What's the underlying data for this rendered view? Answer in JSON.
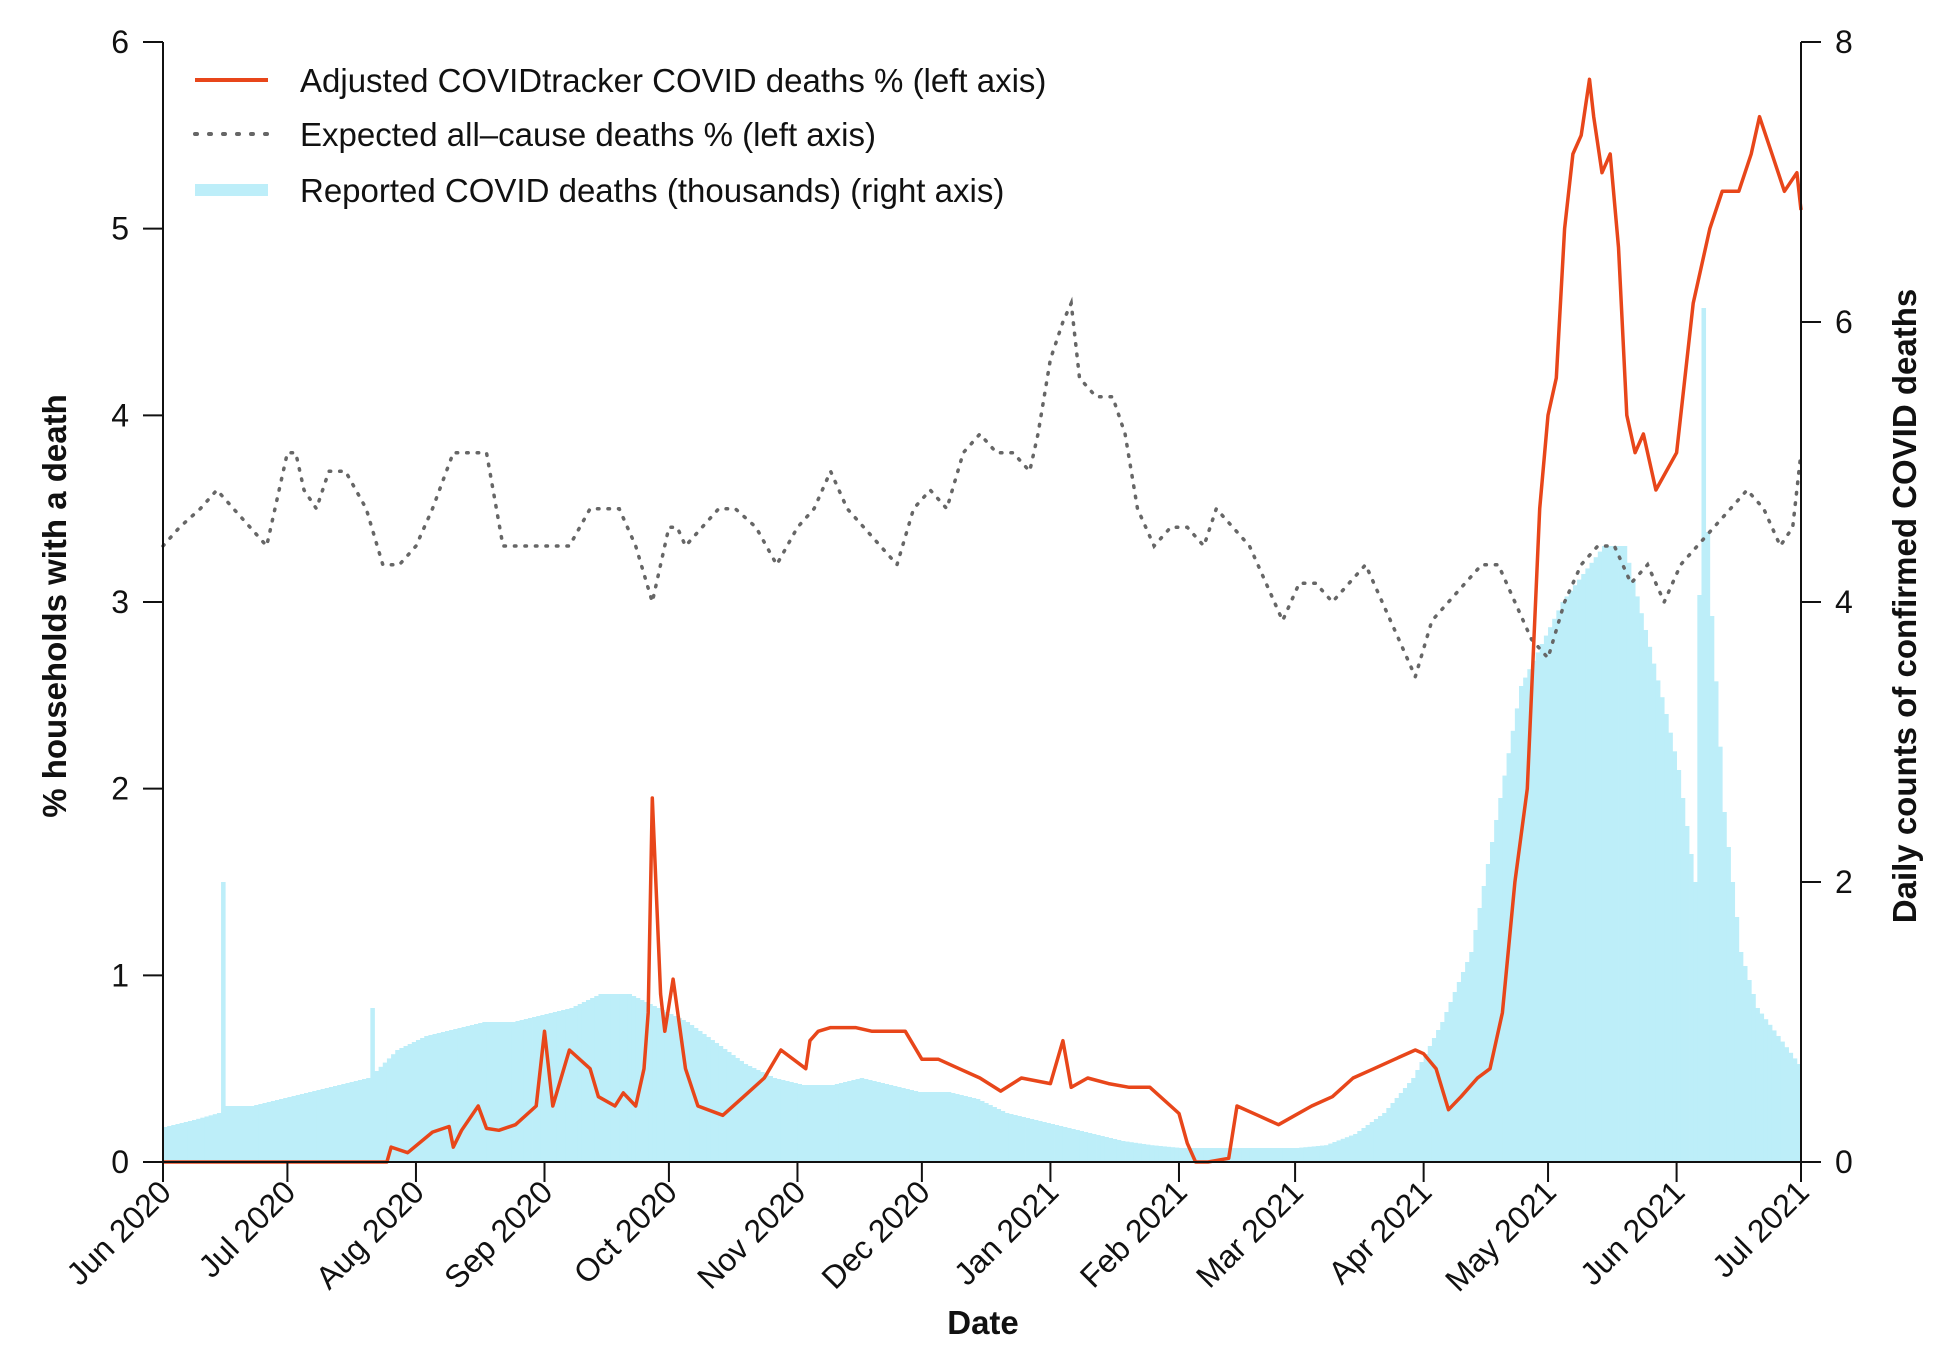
{
  "chart_data": {
    "type": "line",
    "xlabel": "Date",
    "ylabel_left": "% households with a death",
    "ylabel_right": "Daily counts of confirmed COVID deaths",
    "xlim": [
      "2020-06-01",
      "2021-07-01"
    ],
    "ylim_left": [
      0,
      6
    ],
    "ylim_right": [
      0,
      8
    ],
    "grid": false,
    "legend_position": "top-left",
    "x_ticks": [
      "2020-06-01",
      "2020-07-01",
      "2020-08-01",
      "2020-09-01",
      "2020-10-01",
      "2020-11-01",
      "2020-12-01",
      "2021-01-01",
      "2021-02-01",
      "2021-03-01",
      "2021-04-01",
      "2021-05-01",
      "2021-06-01",
      "2021-07-01"
    ],
    "x_tick_labels": [
      "Jun 2020",
      "Jul 2020",
      "Aug 2020",
      "Sep 2020",
      "Oct 2020",
      "Nov 2020",
      "Dec 2020",
      "Jan 2021",
      "Feb 2021",
      "Mar 2021",
      "Apr 2021",
      "May 2021",
      "Jun 2021",
      "Jul 2021"
    ],
    "y_left_ticks": [
      0,
      1,
      2,
      3,
      4,
      5,
      6
    ],
    "y_right_ticks": [
      0,
      2,
      4,
      6,
      8
    ],
    "colors": {
      "adjusted": "#e8461a",
      "expected": "#666666",
      "reported": "#bdeef9"
    },
    "series": [
      {
        "name": "Adjusted COVIDtracker COVID deaths % (left axis)",
        "axis": "left",
        "style": "line",
        "x": [
          "2020-06-01",
          "2020-07-25",
          "2020-07-26",
          "2020-07-30",
          "2020-08-05",
          "2020-08-09",
          "2020-08-10",
          "2020-08-12",
          "2020-08-16",
          "2020-08-18",
          "2020-08-21",
          "2020-08-25",
          "2020-08-30",
          "2020-09-01",
          "2020-09-03",
          "2020-09-05",
          "2020-09-07",
          "2020-09-12",
          "2020-09-14",
          "2020-09-18",
          "2020-09-20",
          "2020-09-23",
          "2020-09-25",
          "2020-09-26",
          "2020-09-27",
          "2020-09-29",
          "2020-09-30",
          "2020-10-02",
          "2020-10-05",
          "2020-10-08",
          "2020-10-14",
          "2020-10-19",
          "2020-10-24",
          "2020-10-28",
          "2020-11-03",
          "2020-11-04",
          "2020-11-06",
          "2020-11-09",
          "2020-11-15",
          "2020-11-19",
          "2020-11-24",
          "2020-11-27",
          "2020-12-01",
          "2020-12-05",
          "2020-12-10",
          "2020-12-15",
          "2020-12-20",
          "2020-12-25",
          "2021-01-01",
          "2021-01-04",
          "2021-01-06",
          "2021-01-10",
          "2021-01-15",
          "2021-01-20",
          "2021-01-25",
          "2021-01-30",
          "2021-02-01",
          "2021-02-03",
          "2021-02-05",
          "2021-02-08",
          "2021-02-13",
          "2021-02-15",
          "2021-02-20",
          "2021-02-25",
          "2021-03-01",
          "2021-03-05",
          "2021-03-10",
          "2021-03-15",
          "2021-03-20",
          "2021-03-25",
          "2021-03-30",
          "2021-04-01",
          "2021-04-04",
          "2021-04-07",
          "2021-04-10",
          "2021-04-14",
          "2021-04-17",
          "2021-04-20",
          "2021-04-23",
          "2021-04-26",
          "2021-04-29",
          "2021-05-01",
          "2021-05-03",
          "2021-05-05",
          "2021-05-07",
          "2021-05-09",
          "2021-05-11",
          "2021-05-12",
          "2021-05-14",
          "2021-05-16",
          "2021-05-18",
          "2021-05-20",
          "2021-05-22",
          "2021-05-24",
          "2021-05-27",
          "2021-06-01",
          "2021-06-03",
          "2021-06-05",
          "2021-06-09",
          "2021-06-12",
          "2021-06-16",
          "2021-06-19",
          "2021-06-21",
          "2021-06-24",
          "2021-06-27",
          "2021-06-30",
          "2021-07-01"
        ],
        "y": [
          0,
          0,
          0.08,
          0.05,
          0.16,
          0.19,
          0.08,
          0.17,
          0.3,
          0.18,
          0.17,
          0.2,
          0.3,
          0.7,
          0.3,
          0.45,
          0.6,
          0.5,
          0.35,
          0.3,
          0.37,
          0.3,
          0.5,
          0.8,
          1.95,
          0.9,
          0.7,
          0.98,
          0.5,
          0.3,
          0.25,
          0.35,
          0.45,
          0.6,
          0.5,
          0.65,
          0.7,
          0.72,
          0.72,
          0.7,
          0.7,
          0.7,
          0.55,
          0.55,
          0.5,
          0.45,
          0.38,
          0.45,
          0.42,
          0.65,
          0.4,
          0.45,
          0.42,
          0.4,
          0.4,
          0.3,
          0.26,
          0.1,
          0,
          0,
          0.02,
          0.3,
          0.25,
          0.2,
          0.25,
          0.3,
          0.35,
          0.45,
          0.5,
          0.55,
          0.6,
          0.58,
          0.5,
          0.28,
          0.35,
          0.45,
          0.5,
          0.8,
          1.5,
          2.0,
          3.5,
          4.0,
          4.2,
          5.0,
          5.4,
          5.5,
          5.8,
          5.6,
          5.3,
          5.4,
          4.9,
          4.0,
          3.8,
          3.9,
          3.6,
          3.8,
          4.2,
          4.6,
          5.0,
          5.2,
          5.2,
          5.4,
          5.6,
          5.4,
          5.2,
          5.3,
          5.1
        ]
      },
      {
        "name": "Expected all–cause deaths % (left axis)",
        "axis": "left",
        "style": "dotted",
        "x": [
          "2020-06-01",
          "2020-06-05",
          "2020-06-10",
          "2020-06-14",
          "2020-06-18",
          "2020-06-22",
          "2020-06-26",
          "2020-07-01",
          "2020-07-03",
          "2020-07-05",
          "2020-07-08",
          "2020-07-11",
          "2020-07-15",
          "2020-07-20",
          "2020-07-24",
          "2020-07-28",
          "2020-08-01",
          "2020-08-05",
          "2020-08-10",
          "2020-08-14",
          "2020-08-18",
          "2020-08-22",
          "2020-08-26",
          "2020-08-30",
          "2020-09-03",
          "2020-09-07",
          "2020-09-12",
          "2020-09-16",
          "2020-09-19",
          "2020-09-23",
          "2020-09-27",
          "2020-10-01",
          "2020-10-03",
          "2020-10-05",
          "2020-10-09",
          "2020-10-13",
          "2020-10-17",
          "2020-10-22",
          "2020-10-27",
          "2020-11-01",
          "2020-11-05",
          "2020-11-09",
          "2020-11-13",
          "2020-11-17",
          "2020-11-21",
          "2020-11-25",
          "2020-11-29",
          "2020-12-03",
          "2020-12-07",
          "2020-12-11",
          "2020-12-15",
          "2020-12-19",
          "2020-12-23",
          "2020-12-27",
          "2020-12-29",
          "2021-01-01",
          "2021-01-04",
          "2021-01-06",
          "2021-01-08",
          "2021-01-12",
          "2021-01-16",
          "2021-01-19",
          "2021-01-22",
          "2021-01-26",
          "2021-01-30",
          "2021-02-03",
          "2021-02-07",
          "2021-02-10",
          "2021-02-14",
          "2021-02-18",
          "2021-02-22",
          "2021-02-26",
          "2021-03-02",
          "2021-03-06",
          "2021-03-10",
          "2021-03-14",
          "2021-03-18",
          "2021-03-22",
          "2021-03-26",
          "2021-03-30",
          "2021-04-03",
          "2021-04-07",
          "2021-04-11",
          "2021-04-15",
          "2021-04-19",
          "2021-04-23",
          "2021-04-27",
          "2021-05-01",
          "2021-05-05",
          "2021-05-09",
          "2021-05-13",
          "2021-05-17",
          "2021-05-21",
          "2021-05-25",
          "2021-05-29",
          "2021-06-02",
          "2021-06-06",
          "2021-06-10",
          "2021-06-14",
          "2021-06-18",
          "2021-06-22",
          "2021-06-26",
          "2021-06-29",
          "2021-07-01"
        ],
        "y": [
          3.3,
          3.4,
          3.5,
          3.6,
          3.5,
          3.4,
          3.3,
          3.8,
          3.8,
          3.6,
          3.5,
          3.7,
          3.7,
          3.5,
          3.2,
          3.2,
          3.3,
          3.5,
          3.8,
          3.8,
          3.8,
          3.3,
          3.3,
          3.3,
          3.3,
          3.3,
          3.5,
          3.5,
          3.5,
          3.3,
          3.0,
          3.4,
          3.4,
          3.3,
          3.4,
          3.5,
          3.5,
          3.4,
          3.2,
          3.4,
          3.5,
          3.7,
          3.5,
          3.4,
          3.3,
          3.2,
          3.5,
          3.6,
          3.5,
          3.8,
          3.9,
          3.8,
          3.8,
          3.7,
          3.9,
          4.3,
          4.5,
          4.6,
          4.2,
          4.1,
          4.1,
          3.9,
          3.5,
          3.3,
          3.4,
          3.4,
          3.3,
          3.5,
          3.4,
          3.3,
          3.1,
          2.9,
          3.1,
          3.1,
          3.0,
          3.1,
          3.2,
          3.0,
          2.8,
          2.6,
          2.9,
          3.0,
          3.1,
          3.2,
          3.2,
          3.0,
          2.8,
          2.7,
          3.0,
          3.2,
          3.3,
          3.3,
          3.1,
          3.2,
          3.0,
          3.2,
          3.3,
          3.4,
          3.5,
          3.6,
          3.5,
          3.3,
          3.4,
          3.8
        ]
      },
      {
        "name": "Reported COVID deaths (thousands) (right axis)",
        "axis": "right",
        "style": "bar",
        "x": [
          "2020-06-01",
          "2020-06-08",
          "2020-06-14",
          "2020-06-15",
          "2020-06-16",
          "2020-06-22",
          "2020-06-29",
          "2020-07-06",
          "2020-07-13",
          "2020-07-20",
          "2020-07-21",
          "2020-07-22",
          "2020-07-27",
          "2020-08-03",
          "2020-08-10",
          "2020-08-17",
          "2020-08-24",
          "2020-08-31",
          "2020-09-07",
          "2020-09-14",
          "2020-09-21",
          "2020-09-28",
          "2020-10-05",
          "2020-10-12",
          "2020-10-19",
          "2020-10-26",
          "2020-11-02",
          "2020-11-09",
          "2020-11-16",
          "2020-11-23",
          "2020-11-30",
          "2020-12-07",
          "2020-12-14",
          "2020-12-21",
          "2020-12-28",
          "2021-01-04",
          "2021-01-11",
          "2021-01-18",
          "2021-01-25",
          "2021-02-01",
          "2021-02-08",
          "2021-02-15",
          "2021-02-22",
          "2021-03-01",
          "2021-03-08",
          "2021-03-15",
          "2021-03-22",
          "2021-03-29",
          "2021-04-05",
          "2021-04-12",
          "2021-04-19",
          "2021-04-24",
          "2021-04-29",
          "2021-05-04",
          "2021-05-09",
          "2021-05-14",
          "2021-05-19",
          "2021-05-24",
          "2021-05-29",
          "2021-06-01",
          "2021-06-05",
          "2021-06-07",
          "2021-06-08",
          "2021-06-09",
          "2021-06-12",
          "2021-06-16",
          "2021-06-20",
          "2021-06-25",
          "2021-06-30"
        ],
        "y": [
          0.25,
          0.3,
          0.35,
          2.0,
          0.4,
          0.4,
          0.45,
          0.5,
          0.55,
          0.6,
          1.1,
          0.65,
          0.8,
          0.9,
          0.95,
          1.0,
          1.0,
          1.05,
          1.1,
          1.2,
          1.2,
          1.1,
          1.0,
          0.85,
          0.7,
          0.6,
          0.55,
          0.55,
          0.6,
          0.55,
          0.5,
          0.5,
          0.45,
          0.35,
          0.3,
          0.25,
          0.2,
          0.15,
          0.12,
          0.1,
          0.1,
          0.1,
          0.1,
          0.1,
          0.12,
          0.2,
          0.35,
          0.6,
          1.0,
          1.5,
          2.6,
          3.4,
          3.7,
          4.0,
          4.2,
          4.4,
          4.4,
          3.8,
          3.2,
          2.8,
          2.0,
          6.1,
          4.5,
          3.9,
          2.5,
          1.5,
          1.1,
          0.9,
          0.7
        ]
      }
    ]
  }
}
